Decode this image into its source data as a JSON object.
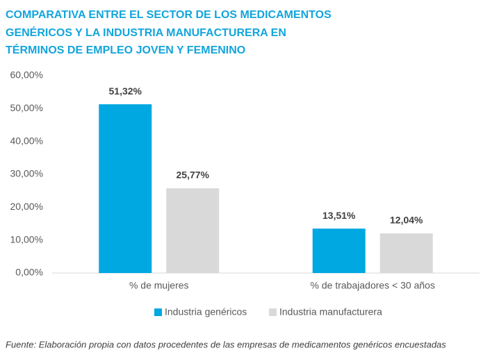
{
  "chart_data": {
    "type": "bar",
    "title": [
      "COMPARATIVA ENTRE EL SECTOR DE LOS MEDICAMENTOS",
      "GENÉRICOS Y LA INDUSTRIA MANUFACTURERA EN",
      "TÉRMINOS DE EMPLEO JOVEN Y FEMENINO"
    ],
    "categories": [
      "% de mujeres",
      "% de trabajadores < 30 años"
    ],
    "series": [
      {
        "name": "Industria genéricos",
        "color": "#00a8e1",
        "values": [
          51.32,
          13.51
        ],
        "value_labels": [
          "51,32%",
          "13,51%"
        ]
      },
      {
        "name": "Industria manufacturera",
        "color": "#d9d9d9",
        "values": [
          25.77,
          12.04
        ],
        "value_labels": [
          "25,77%",
          "12,04%"
        ]
      }
    ],
    "ylim": [
      0,
      60
    ],
    "yticks": [
      {
        "value": 0,
        "label": "0,00%"
      },
      {
        "value": 10,
        "label": "10,00%"
      },
      {
        "value": 20,
        "label": "20,00%"
      },
      {
        "value": 30,
        "label": "30,00%"
      },
      {
        "value": 40,
        "label": "40,00%"
      },
      {
        "value": 50,
        "label": "50,00%"
      },
      {
        "value": 60,
        "label": "60,00%"
      }
    ],
    "grid": false,
    "legend": "bottom",
    "note": "Fuente: Elaboración propia con datos procedentes de las empresas de medicamentos genéricos encuestadas"
  }
}
